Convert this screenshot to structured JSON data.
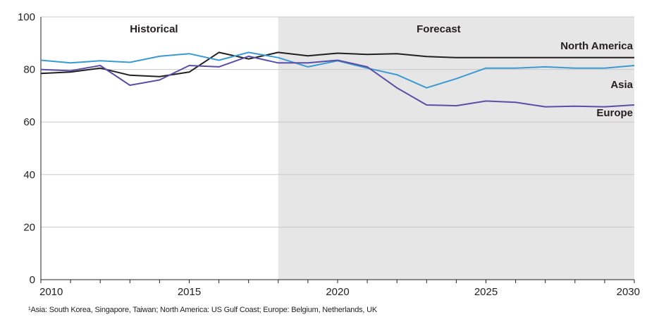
{
  "chart_data": {
    "type": "line",
    "x": [
      2010,
      2011,
      2012,
      2013,
      2014,
      2015,
      2016,
      2017,
      2018,
      2019,
      2020,
      2021,
      2022,
      2023,
      2024,
      2025,
      2026,
      2027,
      2028,
      2029,
      2030
    ],
    "xticks": [
      2010,
      2015,
      2020,
      2025,
      2030
    ],
    "yticks": [
      0,
      20,
      40,
      60,
      80,
      100
    ],
    "xlim": [
      2010,
      2030
    ],
    "ylim": [
      0,
      100
    ],
    "grid": true,
    "regions": [
      {
        "label": "Historical",
        "from": 2010,
        "to": 2018,
        "shaded": false
      },
      {
        "label": "Forecast",
        "from": 2018,
        "to": 2030,
        "shaded": true
      }
    ],
    "series": [
      {
        "name": "North America",
        "color": "#231f20",
        "values": [
          78.5,
          79.0,
          80.5,
          77.8,
          77.3,
          79.0,
          86.5,
          84.0,
          86.5,
          85.2,
          86.2,
          85.7,
          86.0,
          84.9,
          84.5,
          84.5,
          84.5,
          84.5,
          84.5,
          84.5,
          84.5
        ]
      },
      {
        "name": "Asia",
        "color": "#3b9ad2",
        "values": [
          83.5,
          82.5,
          83.3,
          82.7,
          85.0,
          86.0,
          83.5,
          86.5,
          84.5,
          81.0,
          83.3,
          80.5,
          78.0,
          73.0,
          76.5,
          80.5,
          80.5,
          81.0,
          80.5,
          80.5,
          81.5
        ]
      },
      {
        "name": "Europe",
        "color": "#5a4ea6",
        "values": [
          80.0,
          79.5,
          81.5,
          74.0,
          76.0,
          81.5,
          81.0,
          85.0,
          82.5,
          82.5,
          83.5,
          81.0,
          73.0,
          66.5,
          66.2,
          68.0,
          67.5,
          65.8,
          66.0,
          65.8,
          66.5
        ]
      }
    ]
  },
  "footnote": "¹Asia: South Korea, Singapore, Taiwan; North America: US Gulf Coast; Europe: Belgium, Netherlands, UK"
}
